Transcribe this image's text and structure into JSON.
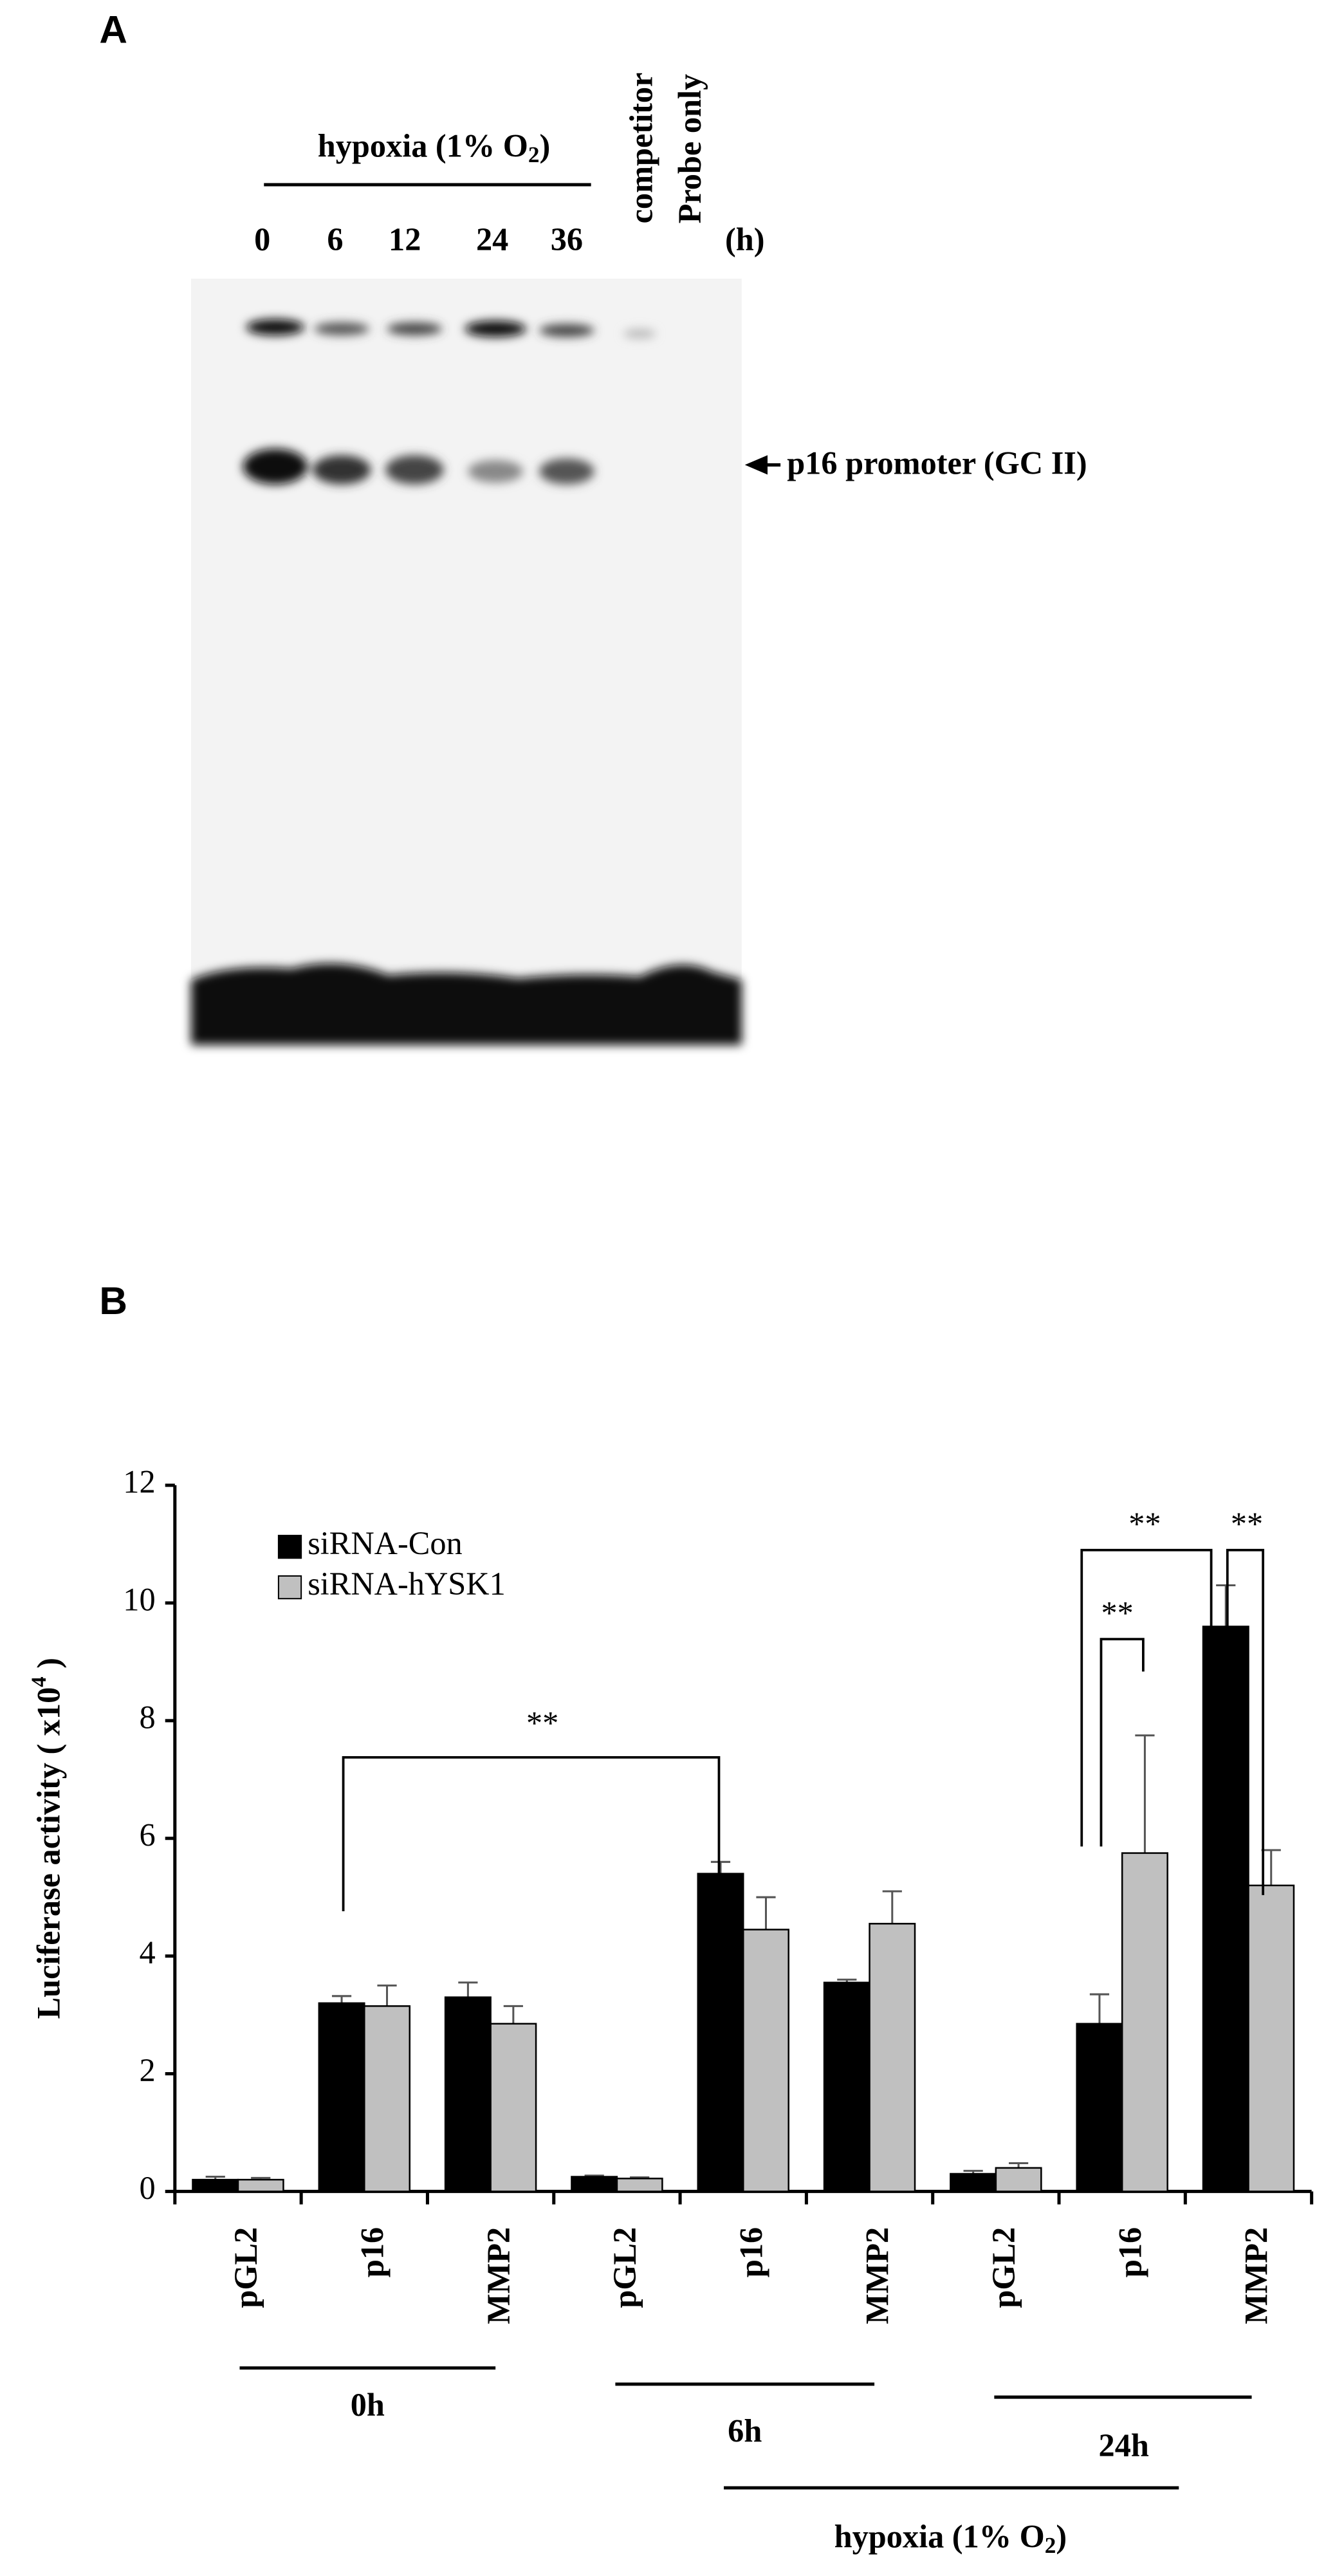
{
  "panel_a": {
    "label": "A",
    "hypoxia": {
      "text": "hypoxia (1% O",
      "sub": "2",
      "end": ")"
    },
    "lanes": [
      "0",
      "6",
      "12",
      "24",
      "36"
    ],
    "competitor": "competitor",
    "probe_only": "Probe only",
    "unit": "(h)",
    "band_label": "p16 promoter (GC II)"
  },
  "chart_data": {
    "type": "bar",
    "panel_label": "B",
    "y_label": {
      "text": "Luciferase activity ( x10",
      "sup": "4",
      "end": " )"
    },
    "categories": [
      "pGL2",
      "p16",
      "MMP2",
      "pGL2",
      "p16",
      "MMP2",
      "pGL2",
      "p16",
      "MMP2"
    ],
    "groups": [
      "0h",
      "6h",
      "24h"
    ],
    "hypoxia": {
      "text": "hypoxia (1% O",
      "sub": "2",
      "end": ")"
    },
    "series": [
      {
        "name": "siRNA-Con",
        "color": "#000000",
        "values": [
          0.2,
          3.2,
          3.3,
          0.25,
          5.4,
          3.55,
          0.3,
          2.85,
          9.6
        ],
        "errors": [
          0.05,
          0.12,
          0.25,
          0.02,
          0.2,
          0.05,
          0.05,
          0.5,
          0.7
        ]
      },
      {
        "name": "siRNA-hYSK1",
        "color": "#c0c0c0",
        "values": [
          0.2,
          3.15,
          2.85,
          0.22,
          4.45,
          4.55,
          0.4,
          5.75,
          5.2
        ],
        "errors": [
          0.03,
          0.35,
          0.3,
          0.02,
          0.55,
          0.55,
          0.08,
          2.0,
          0.6
        ]
      }
    ],
    "ylim": [
      0,
      12
    ],
    "yticks": [
      0,
      2,
      4,
      6,
      8,
      10,
      12
    ],
    "annotations": [
      "**",
      "**",
      "**",
      "**"
    ],
    "legend": "upper left"
  }
}
